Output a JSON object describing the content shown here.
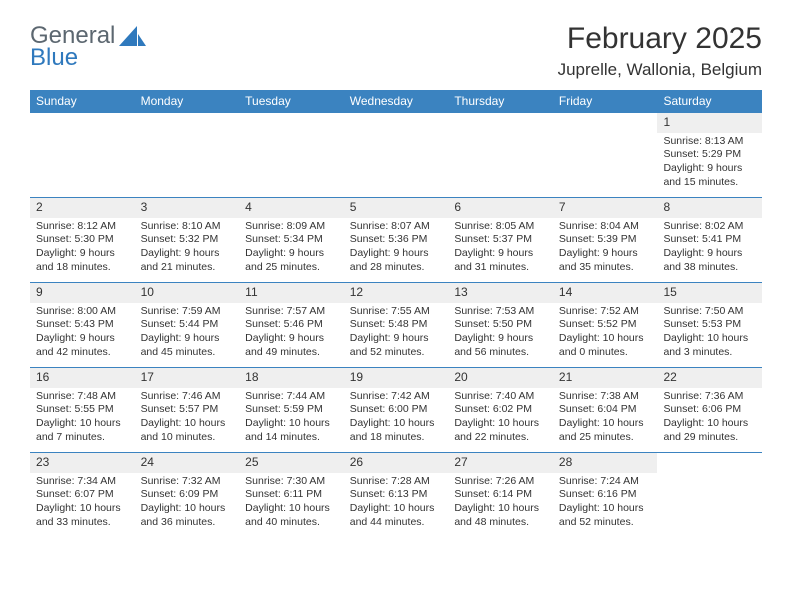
{
  "logo": {
    "general": "General",
    "blue": "Blue",
    "icon_color": "#2f79bd",
    "general_color": "#5c6770",
    "blue_color": "#2f79bd"
  },
  "title": "February 2025",
  "location": "Juprelle, Wallonia, Belgium",
  "colors": {
    "header_bar": "#3b83c0",
    "row_border": "#3b83c0",
    "day_number_bg": "#efefef",
    "background": "#ffffff",
    "text": "#333333"
  },
  "weekdays": [
    "Sunday",
    "Monday",
    "Tuesday",
    "Wednesday",
    "Thursday",
    "Friday",
    "Saturday"
  ],
  "weeks": [
    [
      {
        "empty": true
      },
      {
        "empty": true
      },
      {
        "empty": true
      },
      {
        "empty": true
      },
      {
        "empty": true
      },
      {
        "empty": true
      },
      {
        "day": "1",
        "sunrise": "Sunrise: 8:13 AM",
        "sunset": "Sunset: 5:29 PM",
        "daylight": "Daylight: 9 hours and 15 minutes."
      }
    ],
    [
      {
        "day": "2",
        "sunrise": "Sunrise: 8:12 AM",
        "sunset": "Sunset: 5:30 PM",
        "daylight": "Daylight: 9 hours and 18 minutes."
      },
      {
        "day": "3",
        "sunrise": "Sunrise: 8:10 AM",
        "sunset": "Sunset: 5:32 PM",
        "daylight": "Daylight: 9 hours and 21 minutes."
      },
      {
        "day": "4",
        "sunrise": "Sunrise: 8:09 AM",
        "sunset": "Sunset: 5:34 PM",
        "daylight": "Daylight: 9 hours and 25 minutes."
      },
      {
        "day": "5",
        "sunrise": "Sunrise: 8:07 AM",
        "sunset": "Sunset: 5:36 PM",
        "daylight": "Daylight: 9 hours and 28 minutes."
      },
      {
        "day": "6",
        "sunrise": "Sunrise: 8:05 AM",
        "sunset": "Sunset: 5:37 PM",
        "daylight": "Daylight: 9 hours and 31 minutes."
      },
      {
        "day": "7",
        "sunrise": "Sunrise: 8:04 AM",
        "sunset": "Sunset: 5:39 PM",
        "daylight": "Daylight: 9 hours and 35 minutes."
      },
      {
        "day": "8",
        "sunrise": "Sunrise: 8:02 AM",
        "sunset": "Sunset: 5:41 PM",
        "daylight": "Daylight: 9 hours and 38 minutes."
      }
    ],
    [
      {
        "day": "9",
        "sunrise": "Sunrise: 8:00 AM",
        "sunset": "Sunset: 5:43 PM",
        "daylight": "Daylight: 9 hours and 42 minutes."
      },
      {
        "day": "10",
        "sunrise": "Sunrise: 7:59 AM",
        "sunset": "Sunset: 5:44 PM",
        "daylight": "Daylight: 9 hours and 45 minutes."
      },
      {
        "day": "11",
        "sunrise": "Sunrise: 7:57 AM",
        "sunset": "Sunset: 5:46 PM",
        "daylight": "Daylight: 9 hours and 49 minutes."
      },
      {
        "day": "12",
        "sunrise": "Sunrise: 7:55 AM",
        "sunset": "Sunset: 5:48 PM",
        "daylight": "Daylight: 9 hours and 52 minutes."
      },
      {
        "day": "13",
        "sunrise": "Sunrise: 7:53 AM",
        "sunset": "Sunset: 5:50 PM",
        "daylight": "Daylight: 9 hours and 56 minutes."
      },
      {
        "day": "14",
        "sunrise": "Sunrise: 7:52 AM",
        "sunset": "Sunset: 5:52 PM",
        "daylight": "Daylight: 10 hours and 0 minutes."
      },
      {
        "day": "15",
        "sunrise": "Sunrise: 7:50 AM",
        "sunset": "Sunset: 5:53 PM",
        "daylight": "Daylight: 10 hours and 3 minutes."
      }
    ],
    [
      {
        "day": "16",
        "sunrise": "Sunrise: 7:48 AM",
        "sunset": "Sunset: 5:55 PM",
        "daylight": "Daylight: 10 hours and 7 minutes."
      },
      {
        "day": "17",
        "sunrise": "Sunrise: 7:46 AM",
        "sunset": "Sunset: 5:57 PM",
        "daylight": "Daylight: 10 hours and 10 minutes."
      },
      {
        "day": "18",
        "sunrise": "Sunrise: 7:44 AM",
        "sunset": "Sunset: 5:59 PM",
        "daylight": "Daylight: 10 hours and 14 minutes."
      },
      {
        "day": "19",
        "sunrise": "Sunrise: 7:42 AM",
        "sunset": "Sunset: 6:00 PM",
        "daylight": "Daylight: 10 hours and 18 minutes."
      },
      {
        "day": "20",
        "sunrise": "Sunrise: 7:40 AM",
        "sunset": "Sunset: 6:02 PM",
        "daylight": "Daylight: 10 hours and 22 minutes."
      },
      {
        "day": "21",
        "sunrise": "Sunrise: 7:38 AM",
        "sunset": "Sunset: 6:04 PM",
        "daylight": "Daylight: 10 hours and 25 minutes."
      },
      {
        "day": "22",
        "sunrise": "Sunrise: 7:36 AM",
        "sunset": "Sunset: 6:06 PM",
        "daylight": "Daylight: 10 hours and 29 minutes."
      }
    ],
    [
      {
        "day": "23",
        "sunrise": "Sunrise: 7:34 AM",
        "sunset": "Sunset: 6:07 PM",
        "daylight": "Daylight: 10 hours and 33 minutes."
      },
      {
        "day": "24",
        "sunrise": "Sunrise: 7:32 AM",
        "sunset": "Sunset: 6:09 PM",
        "daylight": "Daylight: 10 hours and 36 minutes."
      },
      {
        "day": "25",
        "sunrise": "Sunrise: 7:30 AM",
        "sunset": "Sunset: 6:11 PM",
        "daylight": "Daylight: 10 hours and 40 minutes."
      },
      {
        "day": "26",
        "sunrise": "Sunrise: 7:28 AM",
        "sunset": "Sunset: 6:13 PM",
        "daylight": "Daylight: 10 hours and 44 minutes."
      },
      {
        "day": "27",
        "sunrise": "Sunrise: 7:26 AM",
        "sunset": "Sunset: 6:14 PM",
        "daylight": "Daylight: 10 hours and 48 minutes."
      },
      {
        "day": "28",
        "sunrise": "Sunrise: 7:24 AM",
        "sunset": "Sunset: 6:16 PM",
        "daylight": "Daylight: 10 hours and 52 minutes."
      },
      {
        "empty": true
      }
    ]
  ]
}
